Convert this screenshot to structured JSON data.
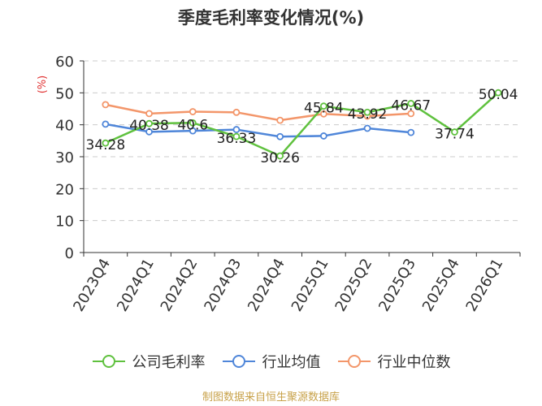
{
  "chart_data": {
    "type": "line",
    "title": "季度毛利率变化情况(%)",
    "ylabel": "(%)",
    "ylim": [
      0,
      60
    ],
    "yticks": [
      0,
      10,
      20,
      30,
      40,
      50,
      60
    ],
    "categories": [
      "2023Q4",
      "2024Q1",
      "2024Q2",
      "2024Q3",
      "2024Q4",
      "2025Q1",
      "2025Q2",
      "2025Q3",
      "2025Q4",
      "2026Q1"
    ],
    "series": [
      {
        "name": "公司毛利率",
        "color": "#5fc13e",
        "values": [
          34.28,
          40.38,
          40.6,
          36.33,
          30.26,
          45.84,
          43.92,
          46.67,
          37.74,
          50.04
        ],
        "labels": [
          "34.28",
          "40.38",
          "40.6",
          "36.33",
          "30.26",
          "45.84",
          "43.92",
          "46.67",
          "37.74",
          "50.04"
        ]
      },
      {
        "name": "行业均值",
        "color": "#4f86d9",
        "values": [
          40.2,
          37.8,
          38.1,
          38.5,
          36.3,
          36.5,
          38.9,
          37.6,
          null,
          null
        ]
      },
      {
        "name": "行业中位数",
        "color": "#f3966a",
        "values": [
          46.3,
          43.5,
          44.1,
          43.9,
          41.4,
          43.4,
          42.7,
          43.5,
          null,
          null
        ]
      }
    ],
    "grid": true,
    "legend_position": "bottom"
  },
  "source": "制图数据来自恒生聚源数据库"
}
